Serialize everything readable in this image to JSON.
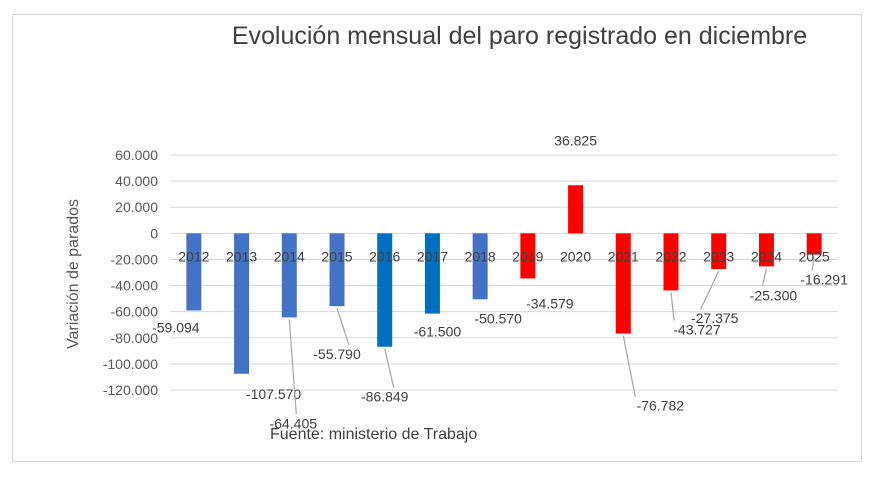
{
  "chart_data": {
    "type": "bar",
    "title": "Evolución mensual del paro registrado en diciembre",
    "xlabel": "",
    "ylabel": "Variación de parados",
    "source": "Fuente: ministerio de Trabajo",
    "ylim": [
      -120000,
      60000
    ],
    "y_ticks": [
      {
        "value": 60000,
        "label": "60.000"
      },
      {
        "value": 40000,
        "label": "40.000"
      },
      {
        "value": 20000,
        "label": "20.000"
      },
      {
        "value": 0,
        "label": "0"
      },
      {
        "value": -20000,
        "label": "-20.000"
      },
      {
        "value": -40000,
        "label": "-40.000"
      },
      {
        "value": -60000,
        "label": "-60.000"
      },
      {
        "value": -80000,
        "label": "-80.000"
      },
      {
        "value": -100000,
        "label": "-100.000"
      },
      {
        "value": -120000,
        "label": "-120.000"
      }
    ],
    "grid": true,
    "categories": [
      "2012",
      "2013",
      "2014",
      "2015",
      "2016",
      "2017",
      "2018",
      "2019",
      "2020",
      "2021",
      "2022",
      "2023",
      "2024",
      "2025"
    ],
    "values": [
      -59094,
      -107570,
      -64405,
      -55790,
      -86849,
      -61500,
      -50570,
      -34579,
      36825,
      -76782,
      -43727,
      -27375,
      -25300,
      -16291
    ],
    "labels": [
      "-59.094",
      "-107.570",
      "-64.405",
      "-55.790",
      "-86.849",
      "-61.500",
      "-50.570",
      "-34.579",
      "36.825",
      "-76.782",
      "-43.727",
      "-27.375",
      "-25.300",
      "-16.291"
    ],
    "colors": [
      "#4472c4",
      "#4472c4",
      "#4472c4",
      "#4472c4",
      "#0070c0",
      "#0070c0",
      "#4472c4",
      "#ff0000",
      "#ff0000",
      "#ff0000",
      "#ff0000",
      "#ff0000",
      "#ff0000",
      "#ff0000"
    ],
    "colors_legend": {
      "blue": "#4472c4",
      "dark_blue": "#0070c0",
      "red": "#ff0000"
    }
  }
}
